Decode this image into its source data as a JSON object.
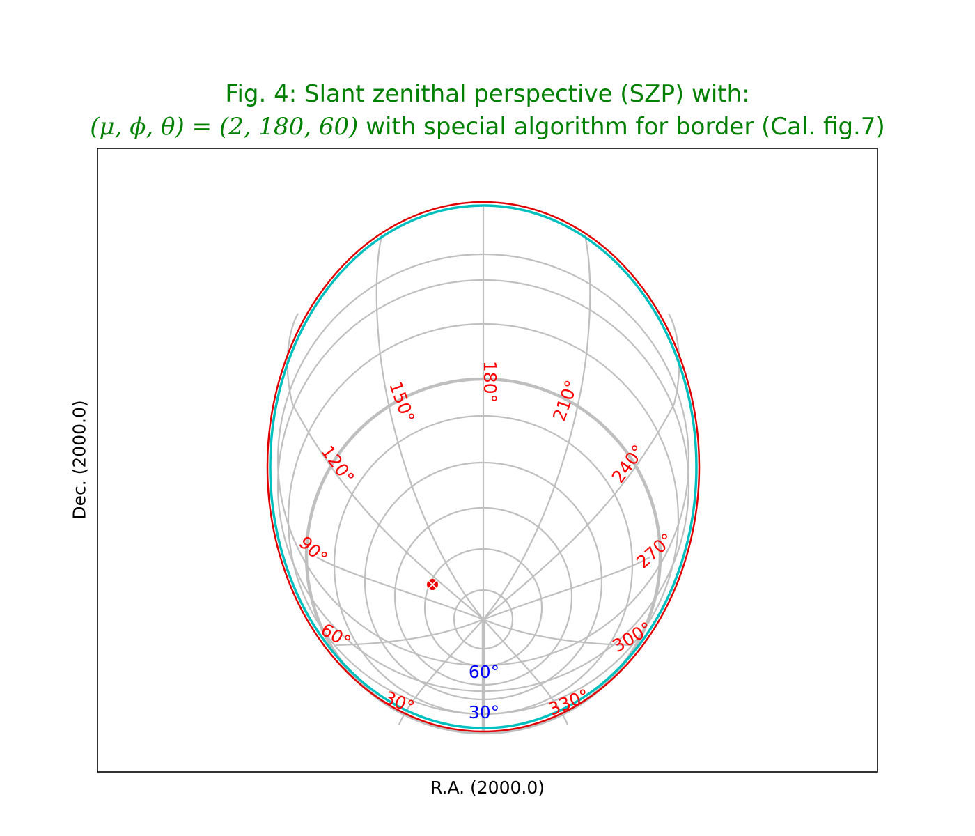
{
  "figure": {
    "title_line1": "Fig. 4: Slant zenithal perspective (SZP) with:",
    "title_line2_symbols": "(μ, ϕ, θ)",
    "title_line2_equals": " = ",
    "title_line2_values": "(2, 180, 60)",
    "title_line2_text": " with special algorithm for border (Cal. fig.7)",
    "xlabel": "R.A. (2000.0)",
    "ylabel": "Dec. (2000.0)"
  },
  "graticule": {
    "longitude_labels": [
      "30°",
      "60°",
      "90°",
      "120°",
      "150°",
      "180°",
      "210°",
      "240°",
      "270°",
      "300°",
      "330°"
    ],
    "latitude_labels": [
      "60°",
      "30°"
    ],
    "colors": {
      "grid": "#bfbfbf",
      "border_outer": "#e00000",
      "border_inner": "#00bfbf",
      "longitude_label": "#ff0000",
      "latitude_label": "#0000ff",
      "marker": "#ee0000"
    }
  }
}
